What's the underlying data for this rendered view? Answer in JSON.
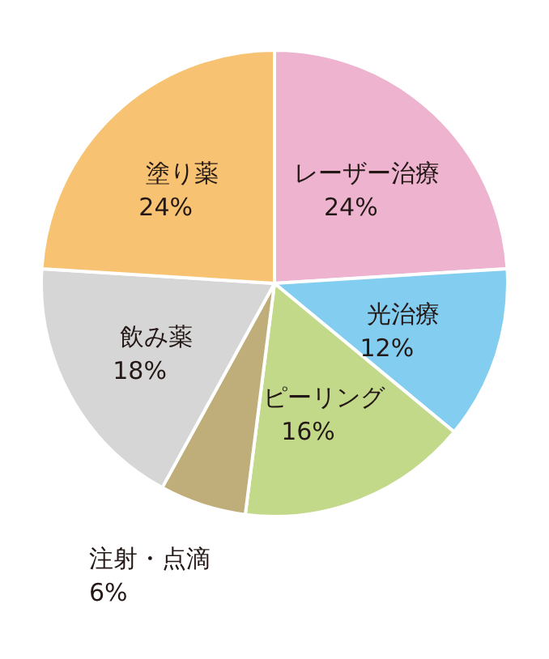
{
  "chart_data": {
    "type": "pie",
    "categories": [
      "レーザー治療",
      "光治療",
      "ピーリング",
      "注射・点滴",
      "飲み薬",
      "塗り薬"
    ],
    "values": [
      24,
      12,
      16,
      6,
      18,
      24
    ],
    "value_labels": [
      "24%",
      "12%",
      "16%",
      "6%",
      "18%",
      "24%"
    ],
    "colors": [
      "#eeb3cf",
      "#82cdf0",
      "#c3d98a",
      "#bfae7a",
      "#d6d6d6",
      "#f7c272"
    ],
    "legend": false
  }
}
